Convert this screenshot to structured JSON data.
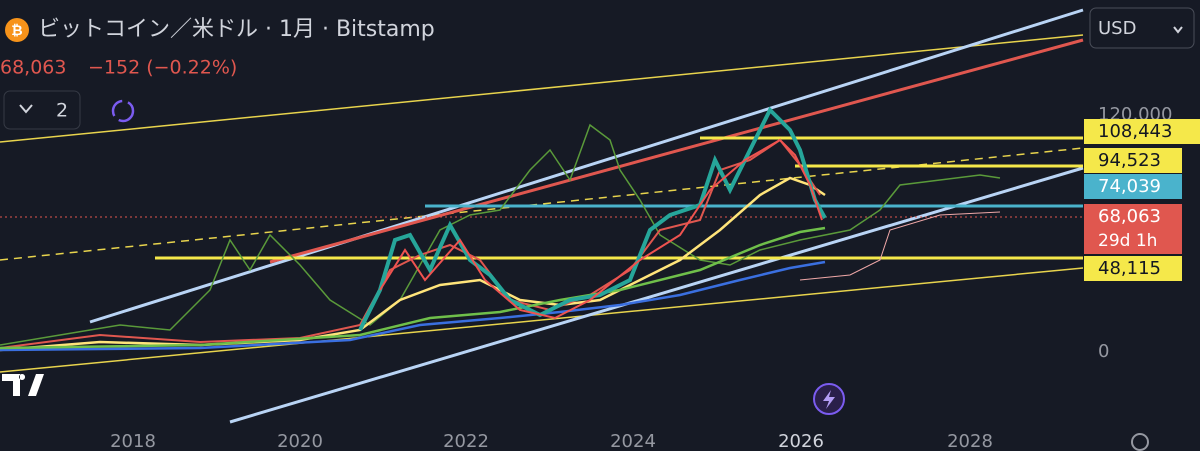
{
  "header": {
    "title": "ビットコイン／米ドル · 1月 · Bitstamp",
    "price": "68,063",
    "change": "−152 (−0.22%)",
    "indicator_count": "2",
    "currency": "USD"
  },
  "price_scale": {
    "labels": [
      "120,000",
      "0"
    ],
    "markers": [
      {
        "label": "108,443"
      },
      {
        "label": "94,523"
      },
      {
        "label": "74,039"
      },
      {
        "label": "68,063",
        "sub": "29d 1h"
      },
      {
        "label": "48,115"
      }
    ]
  },
  "time_axis": {
    "labels": [
      "2018",
      "2020",
      "2022",
      "2024",
      "2026",
      "2028"
    ]
  }
}
